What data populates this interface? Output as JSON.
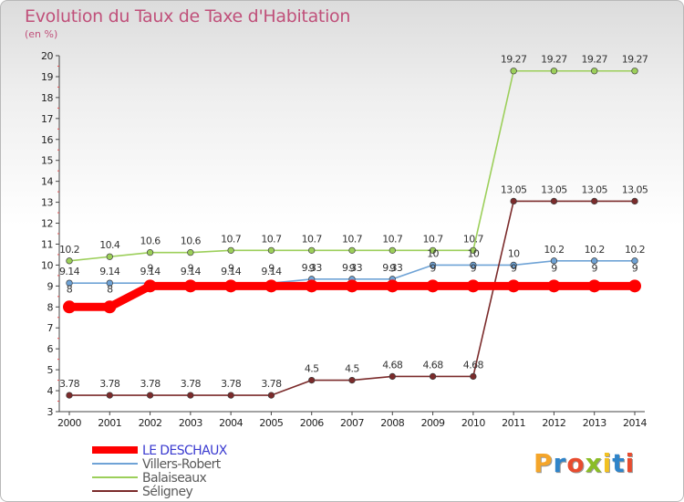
{
  "title": "Evolution du Taux de Taxe d'Habitation",
  "subtitle": "(en %)",
  "logo": {
    "text": "Proxiti",
    "colors": [
      "#f4a52a",
      "#2f84c9",
      "#e84c2f",
      "#8bbd27",
      "#f2c122",
      "#2f84c9",
      "#e84c2f"
    ]
  },
  "chart_data": {
    "type": "line",
    "title": "Evolution du Taux de Taxe d'Habitation",
    "ylabel": "(en %)",
    "xlabel": "",
    "ylim": [
      3,
      20
    ],
    "yticks": [
      "3",
      "4",
      "5",
      "6",
      "7",
      "8",
      "9",
      "10",
      "11",
      "12",
      "13",
      "14",
      "15",
      "16",
      "17",
      "18",
      "19",
      "20"
    ],
    "x": [
      "2000",
      "2001",
      "2002",
      "2003",
      "2004",
      "2005",
      "2006",
      "2007",
      "2008",
      "2009",
      "2010",
      "2011",
      "2012",
      "2013",
      "2014"
    ],
    "grid": false,
    "legend_position": "bottom-left",
    "series": [
      {
        "name": "LE DESCHAUX",
        "color": "#ff0000",
        "thick": true,
        "values": [
          8,
          8,
          9,
          9,
          9,
          9,
          9,
          9,
          9,
          9,
          9,
          9,
          9,
          9,
          9
        ],
        "labels": [
          "8",
          "8",
          "9",
          "9",
          "9",
          "9",
          "9",
          "9",
          "9",
          "9",
          "9",
          "9",
          "9",
          "9",
          "9"
        ]
      },
      {
        "name": "Villers-Robert",
        "color": "#6fa3d6",
        "values": [
          9.14,
          9.14,
          9.14,
          9.14,
          9.14,
          9.14,
          9.33,
          9.33,
          9.33,
          10,
          10,
          10,
          10.2,
          10.2,
          10.2
        ],
        "labels": [
          "9.14",
          "9.14",
          "9.14",
          "9.14",
          "9.14",
          "9.14",
          "9.33",
          "9.33",
          "9.33",
          "10",
          "10",
          "10",
          "10.2",
          "10.2",
          "10.2"
        ]
      },
      {
        "name": "Balaiseaux",
        "color": "#9ccf5a",
        "values": [
          10.2,
          10.4,
          10.6,
          10.6,
          10.7,
          10.7,
          10.7,
          10.7,
          10.7,
          10.7,
          10.7,
          19.27,
          19.27,
          19.27,
          19.27
        ],
        "labels": [
          "10.2",
          "10.4",
          "10.6",
          "10.6",
          "10.7",
          "10.7",
          "10.7",
          "10.7",
          "10.7",
          "10.7",
          "10.7",
          "19.27",
          "19.27",
          "19.27",
          "19.27"
        ]
      },
      {
        "name": "Séligney",
        "color": "#7b2b2b",
        "values": [
          3.78,
          3.78,
          3.78,
          3.78,
          3.78,
          3.78,
          4.5,
          4.5,
          4.68,
          4.68,
          4.68,
          13.05,
          13.05,
          13.05,
          13.05
        ],
        "labels": [
          "3.78",
          "3.78",
          "3.78",
          "3.78",
          "3.78",
          "3.78",
          "4.5",
          "4.5",
          "4.68",
          "4.68",
          "4.68",
          "13.05",
          "13.05",
          "13.05",
          "13.05"
        ]
      }
    ]
  }
}
